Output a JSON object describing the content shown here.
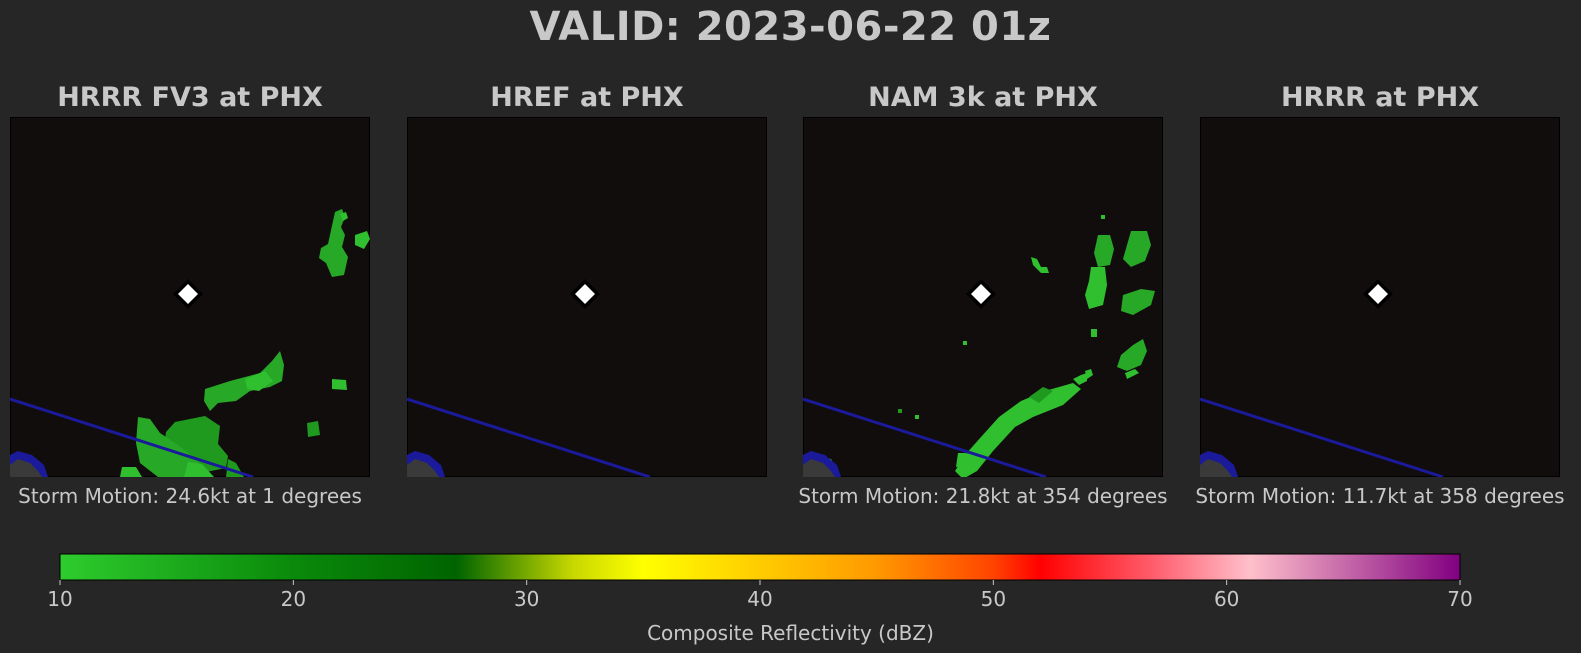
{
  "title": "VALID: 2023-06-22 01z",
  "panels": [
    {
      "title": "HRRR FV3 at PHX",
      "caption": "Storm Motion: 24.6kt at 1 degrees"
    },
    {
      "title": "HREF at PHX",
      "caption": ""
    },
    {
      "title": "NAM 3k at PHX",
      "caption": "Storm Motion: 21.8kt at 354 degrees"
    },
    {
      "title": "HRRR at PHX",
      "caption": "Storm Motion: 11.7kt at 358 degrees"
    }
  ],
  "colors": {
    "background": "#262626",
    "map_background": "#110d0c",
    "boundary_line": "#1a1a9a",
    "echo_light": "#2fbf2f",
    "echo_dark": "#1e8e1e",
    "station_marker": "#ffffff"
  },
  "station_marker_icon": "diamond",
  "chart_data": {
    "type": "heatmap",
    "colorbar": {
      "label": "Composite Reflectivity (dBZ)",
      "range": [
        10,
        70
      ],
      "ticks": [
        10,
        20,
        30,
        40,
        50,
        60,
        70
      ],
      "tick_labels": [
        "10",
        "20",
        "30",
        "40",
        "50",
        "60",
        "70"
      ],
      "stops": [
        {
          "value": 10,
          "color": "#2ecc2e"
        },
        {
          "value": 20,
          "color": "#0a8a0a"
        },
        {
          "value": 27,
          "color": "#006400"
        },
        {
          "value": 32,
          "color": "#c8d800"
        },
        {
          "value": 35,
          "color": "#ffff00"
        },
        {
          "value": 45,
          "color": "#ff9900"
        },
        {
          "value": 50,
          "color": "#ff4400"
        },
        {
          "value": 52,
          "color": "#ff0000"
        },
        {
          "value": 57,
          "color": "#ff6070"
        },
        {
          "value": 61,
          "color": "#ffc0cb"
        },
        {
          "value": 70,
          "color": "#800080"
        }
      ]
    }
  }
}
